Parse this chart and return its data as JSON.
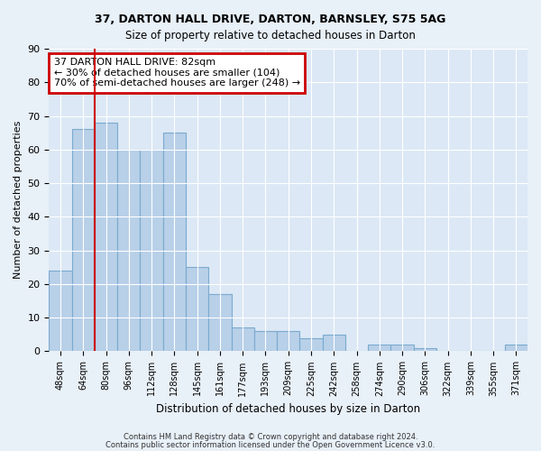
{
  "title1": "37, DARTON HALL DRIVE, DARTON, BARNSLEY, S75 5AG",
  "title2": "Size of property relative to detached houses in Darton",
  "xlabel": "Distribution of detached houses by size in Darton",
  "ylabel": "Number of detached properties",
  "categories": [
    "48sqm",
    "64sqm",
    "80sqm",
    "96sqm",
    "112sqm",
    "128sqm",
    "145sqm",
    "161sqm",
    "177sqm",
    "193sqm",
    "209sqm",
    "225sqm",
    "242sqm",
    "258sqm",
    "274sqm",
    "290sqm",
    "306sqm",
    "322sqm",
    "339sqm",
    "355sqm",
    "371sqm"
  ],
  "values": [
    24,
    66,
    68,
    60,
    60,
    65,
    25,
    17,
    7,
    6,
    6,
    4,
    5,
    0,
    2,
    2,
    1,
    0,
    0,
    0,
    2
  ],
  "bar_color": "#b8d0e8",
  "bar_edge_color": "#7aaad0",
  "annotation_text": "37 DARTON HALL DRIVE: 82sqm\n← 30% of detached houses are smaller (104)\n70% of semi-detached houses are larger (248) →",
  "annotation_box_color": "#ffffff",
  "annotation_box_edge": "#cc0000",
  "vline_color": "#cc0000",
  "footer1": "Contains HM Land Registry data © Crown copyright and database right 2024.",
  "footer2": "Contains public sector information licensed under the Open Government Licence v3.0.",
  "ylim": [
    0,
    90
  ],
  "yticks": [
    0,
    10,
    20,
    30,
    40,
    50,
    60,
    70,
    80,
    90
  ],
  "bg_color": "#e8f0f8",
  "plot_bg_color": "#dce8f5",
  "grid_color": "#ffffff"
}
